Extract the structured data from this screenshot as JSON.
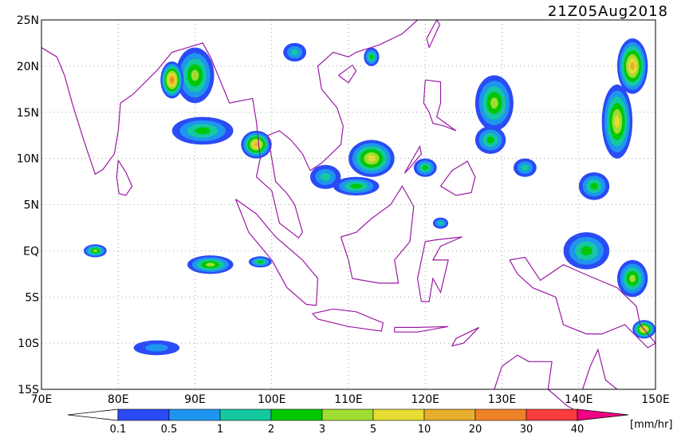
{
  "map": {
    "title": "21Z05Aug2018",
    "lat_labels": [
      "25N",
      "20N",
      "15N",
      "10N",
      "5N",
      "EQ",
      "5S",
      "10S",
      "15S"
    ],
    "lon_labels": [
      "70E",
      "80E",
      "90E",
      "100E",
      "110E",
      "120E",
      "130E",
      "140E",
      "150E"
    ],
    "colorbar": {
      "labels": [
        0.1,
        0.5,
        1,
        2,
        3,
        5,
        10,
        20,
        30,
        40
      ],
      "colors": [
        "#ffffff",
        "#2a4bf5",
        "#1e96f0",
        "#14c8a0",
        "#00c800",
        "#a0dc32",
        "#e6dc32",
        "#e6af2d",
        "#f08228",
        "#fa3c3c",
        "#f00082"
      ],
      "unit": "[mm/hr]"
    }
  }
}
